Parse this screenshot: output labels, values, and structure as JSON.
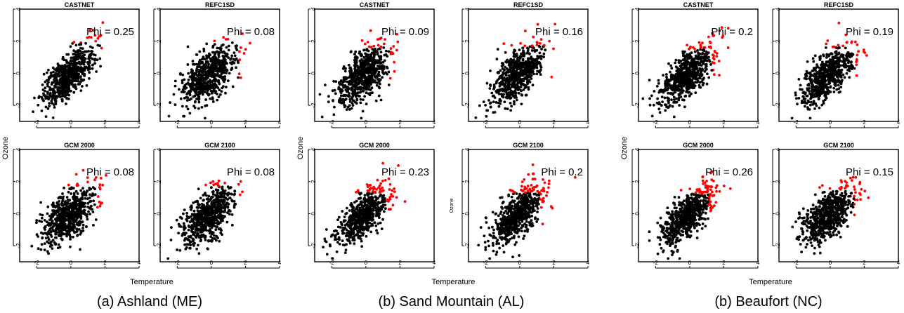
{
  "figure": {
    "groups": [
      {
        "caption": "(a) Ashland (ME)",
        "xlabel": "Temperature",
        "ylabel": "Ozone"
      },
      {
        "caption": "(b) Sand Mountain (AL)",
        "xlabel": "Temperature",
        "ylabel": "Ozone"
      },
      {
        "caption": "(b) Beaufort (NC)",
        "xlabel": "Temperature",
        "ylabel": "Ozone"
      }
    ]
  },
  "chart_data": [
    {
      "type": "scatter",
      "title": "CASTNET",
      "annotation": "Phi = 0.25",
      "phi": 0.25,
      "xlim": [
        -3,
        4
      ],
      "ylim": [
        -3,
        4
      ],
      "xticks": [
        "-2",
        "0",
        "2",
        "4"
      ],
      "yticks": [
        "-2",
        "0",
        "2",
        "4"
      ],
      "red_threshold": {
        "x": 1.8,
        "y": 1.9
      },
      "series": [
        {
          "color": "#000000"
        },
        {
          "color": "#ff0000"
        }
      ]
    },
    {
      "type": "scatter",
      "title": "REFC1SD",
      "annotation": "Phi = 0.08",
      "phi": 0.08,
      "xlim": [
        -3,
        4
      ],
      "ylim": [
        -3,
        4
      ],
      "xticks": [
        "-2",
        "0",
        "2",
        "4"
      ],
      "yticks": [
        "-2",
        "0",
        "2",
        "4"
      ],
      "red_threshold": {
        "x": 1.6,
        "y": 2.0
      },
      "series": [
        {
          "color": "#000000"
        },
        {
          "color": "#ff0000"
        }
      ]
    },
    {
      "type": "scatter",
      "title": "GCM 2000",
      "annotation": "Phi = 0.08",
      "phi": 0.08,
      "xlim": [
        -3,
        4
      ],
      "ylim": [
        -3,
        4
      ],
      "xticks": [
        "-2",
        "0",
        "2",
        "4"
      ],
      "yticks": [
        "-2",
        "0",
        "2",
        "4"
      ],
      "red_threshold": {
        "x": 1.5,
        "y": 1.7
      },
      "series": [
        {
          "color": "#000000"
        },
        {
          "color": "#ff0000"
        }
      ]
    },
    {
      "type": "scatter",
      "title": "GCM 2100",
      "annotation": "Phi = 0.08",
      "phi": 0.08,
      "xlim": [
        -3,
        4
      ],
      "ylim": [
        -3,
        4
      ],
      "xticks": [
        "-2",
        "0",
        "2",
        "4"
      ],
      "yticks": [
        "-2",
        "0",
        "2",
        "4"
      ],
      "red_threshold": {
        "x": 1.5,
        "y": 1.7
      },
      "series": [
        {
          "color": "#000000"
        },
        {
          "color": "#ff0000"
        }
      ]
    },
    {
      "type": "scatter",
      "title": "CASTNET",
      "annotation": "Phi = 0.09",
      "phi": 0.09,
      "xlim": [
        -3,
        4
      ],
      "ylim": [
        -3,
        4
      ],
      "xticks": [
        "-2",
        "0",
        "2",
        "4"
      ],
      "yticks": [
        "-2",
        "0",
        "2",
        "4"
      ],
      "red_threshold": {
        "x": 1.4,
        "y": 1.6
      },
      "series": [
        {
          "color": "#000000"
        },
        {
          "color": "#ff0000"
        }
      ]
    },
    {
      "type": "scatter",
      "title": "REFC1SD",
      "annotation": "Phi = 0.16",
      "phi": 0.16,
      "xlim": [
        -3,
        4
      ],
      "ylim": [
        -3,
        4
      ],
      "xticks": [
        "-2",
        "0",
        "2",
        "4"
      ],
      "yticks": [
        "-2",
        "0",
        "2",
        "4"
      ],
      "red_threshold": {
        "x": 1.6,
        "y": 1.7
      },
      "series": [
        {
          "color": "#000000"
        },
        {
          "color": "#ff0000"
        }
      ]
    },
    {
      "type": "scatter",
      "title": "GCM 2000",
      "annotation": "Phi = 0.23",
      "phi": 0.23,
      "xlim": [
        -3,
        4
      ],
      "ylim": [
        -3,
        4
      ],
      "xticks": [
        "-2",
        "0",
        "2",
        "4"
      ],
      "yticks": [
        "-2",
        "0",
        "2",
        "4"
      ],
      "red_threshold": {
        "x": 1.2,
        "y": 1.3
      },
      "series": [
        {
          "color": "#000000"
        },
        {
          "color": "#ff0000"
        }
      ]
    },
    {
      "type": "scatter",
      "title": "GCM 2100",
      "annotation": "Phi = 0.2",
      "phi": 0.2,
      "xlim": [
        -3,
        4
      ],
      "ylim": [
        -3,
        4
      ],
      "xticks": [
        "-2",
        "0",
        "2",
        "4"
      ],
      "yticks": [
        "-2",
        "0",
        "2",
        "4"
      ],
      "ylabel": "Ozone",
      "red_threshold": {
        "x": 1.2,
        "y": 1.3
      },
      "series": [
        {
          "color": "#000000"
        },
        {
          "color": "#ff0000"
        }
      ]
    },
    {
      "type": "scatter",
      "title": "CASTNET",
      "annotation": "Phi = 0.2",
      "phi": 0.2,
      "xlim": [
        -3,
        4
      ],
      "ylim": [
        -3,
        4
      ],
      "xticks": [
        "-2",
        "0",
        "2",
        "4"
      ],
      "yticks": [
        "-2",
        "0",
        "2",
        "4"
      ],
      "red_threshold": {
        "x": 1.3,
        "y": 1.5
      },
      "series": [
        {
          "color": "#000000"
        },
        {
          "color": "#ff0000"
        }
      ]
    },
    {
      "type": "scatter",
      "title": "REFC1SD",
      "annotation": "Phi = 0.19",
      "phi": 0.19,
      "xlim": [
        -3,
        4
      ],
      "ylim": [
        -3,
        4
      ],
      "xticks": [
        "-2",
        "0",
        "2",
        "4"
      ],
      "yticks": [
        "-2",
        "0",
        "2",
        "4"
      ],
      "red_threshold": {
        "x": 1.5,
        "y": 1.6
      },
      "series": [
        {
          "color": "#000000"
        },
        {
          "color": "#ff0000"
        }
      ]
    },
    {
      "type": "scatter",
      "title": "GCM 2000",
      "annotation": "Phi = 0.26",
      "phi": 0.26,
      "xlim": [
        -3,
        4
      ],
      "ylim": [
        -3,
        4
      ],
      "xticks": [
        "-2",
        "0",
        "2",
        "4"
      ],
      "yticks": [
        "-2",
        "0",
        "2",
        "4"
      ],
      "red_threshold": {
        "x": 1.1,
        "y": 1.2
      },
      "series": [
        {
          "color": "#000000"
        },
        {
          "color": "#ff0000"
        }
      ]
    },
    {
      "type": "scatter",
      "title": "GCM 2100",
      "annotation": "Phi = 0.15",
      "phi": 0.15,
      "xlim": [
        -3,
        4
      ],
      "ylim": [
        -3,
        4
      ],
      "xticks": [
        "-2",
        "0",
        "2",
        "4"
      ],
      "yticks": [
        "-2",
        "0",
        "2",
        "4"
      ],
      "red_threshold": {
        "x": 1.4,
        "y": 1.5
      },
      "series": [
        {
          "color": "#000000"
        },
        {
          "color": "#ff0000"
        }
      ]
    }
  ]
}
